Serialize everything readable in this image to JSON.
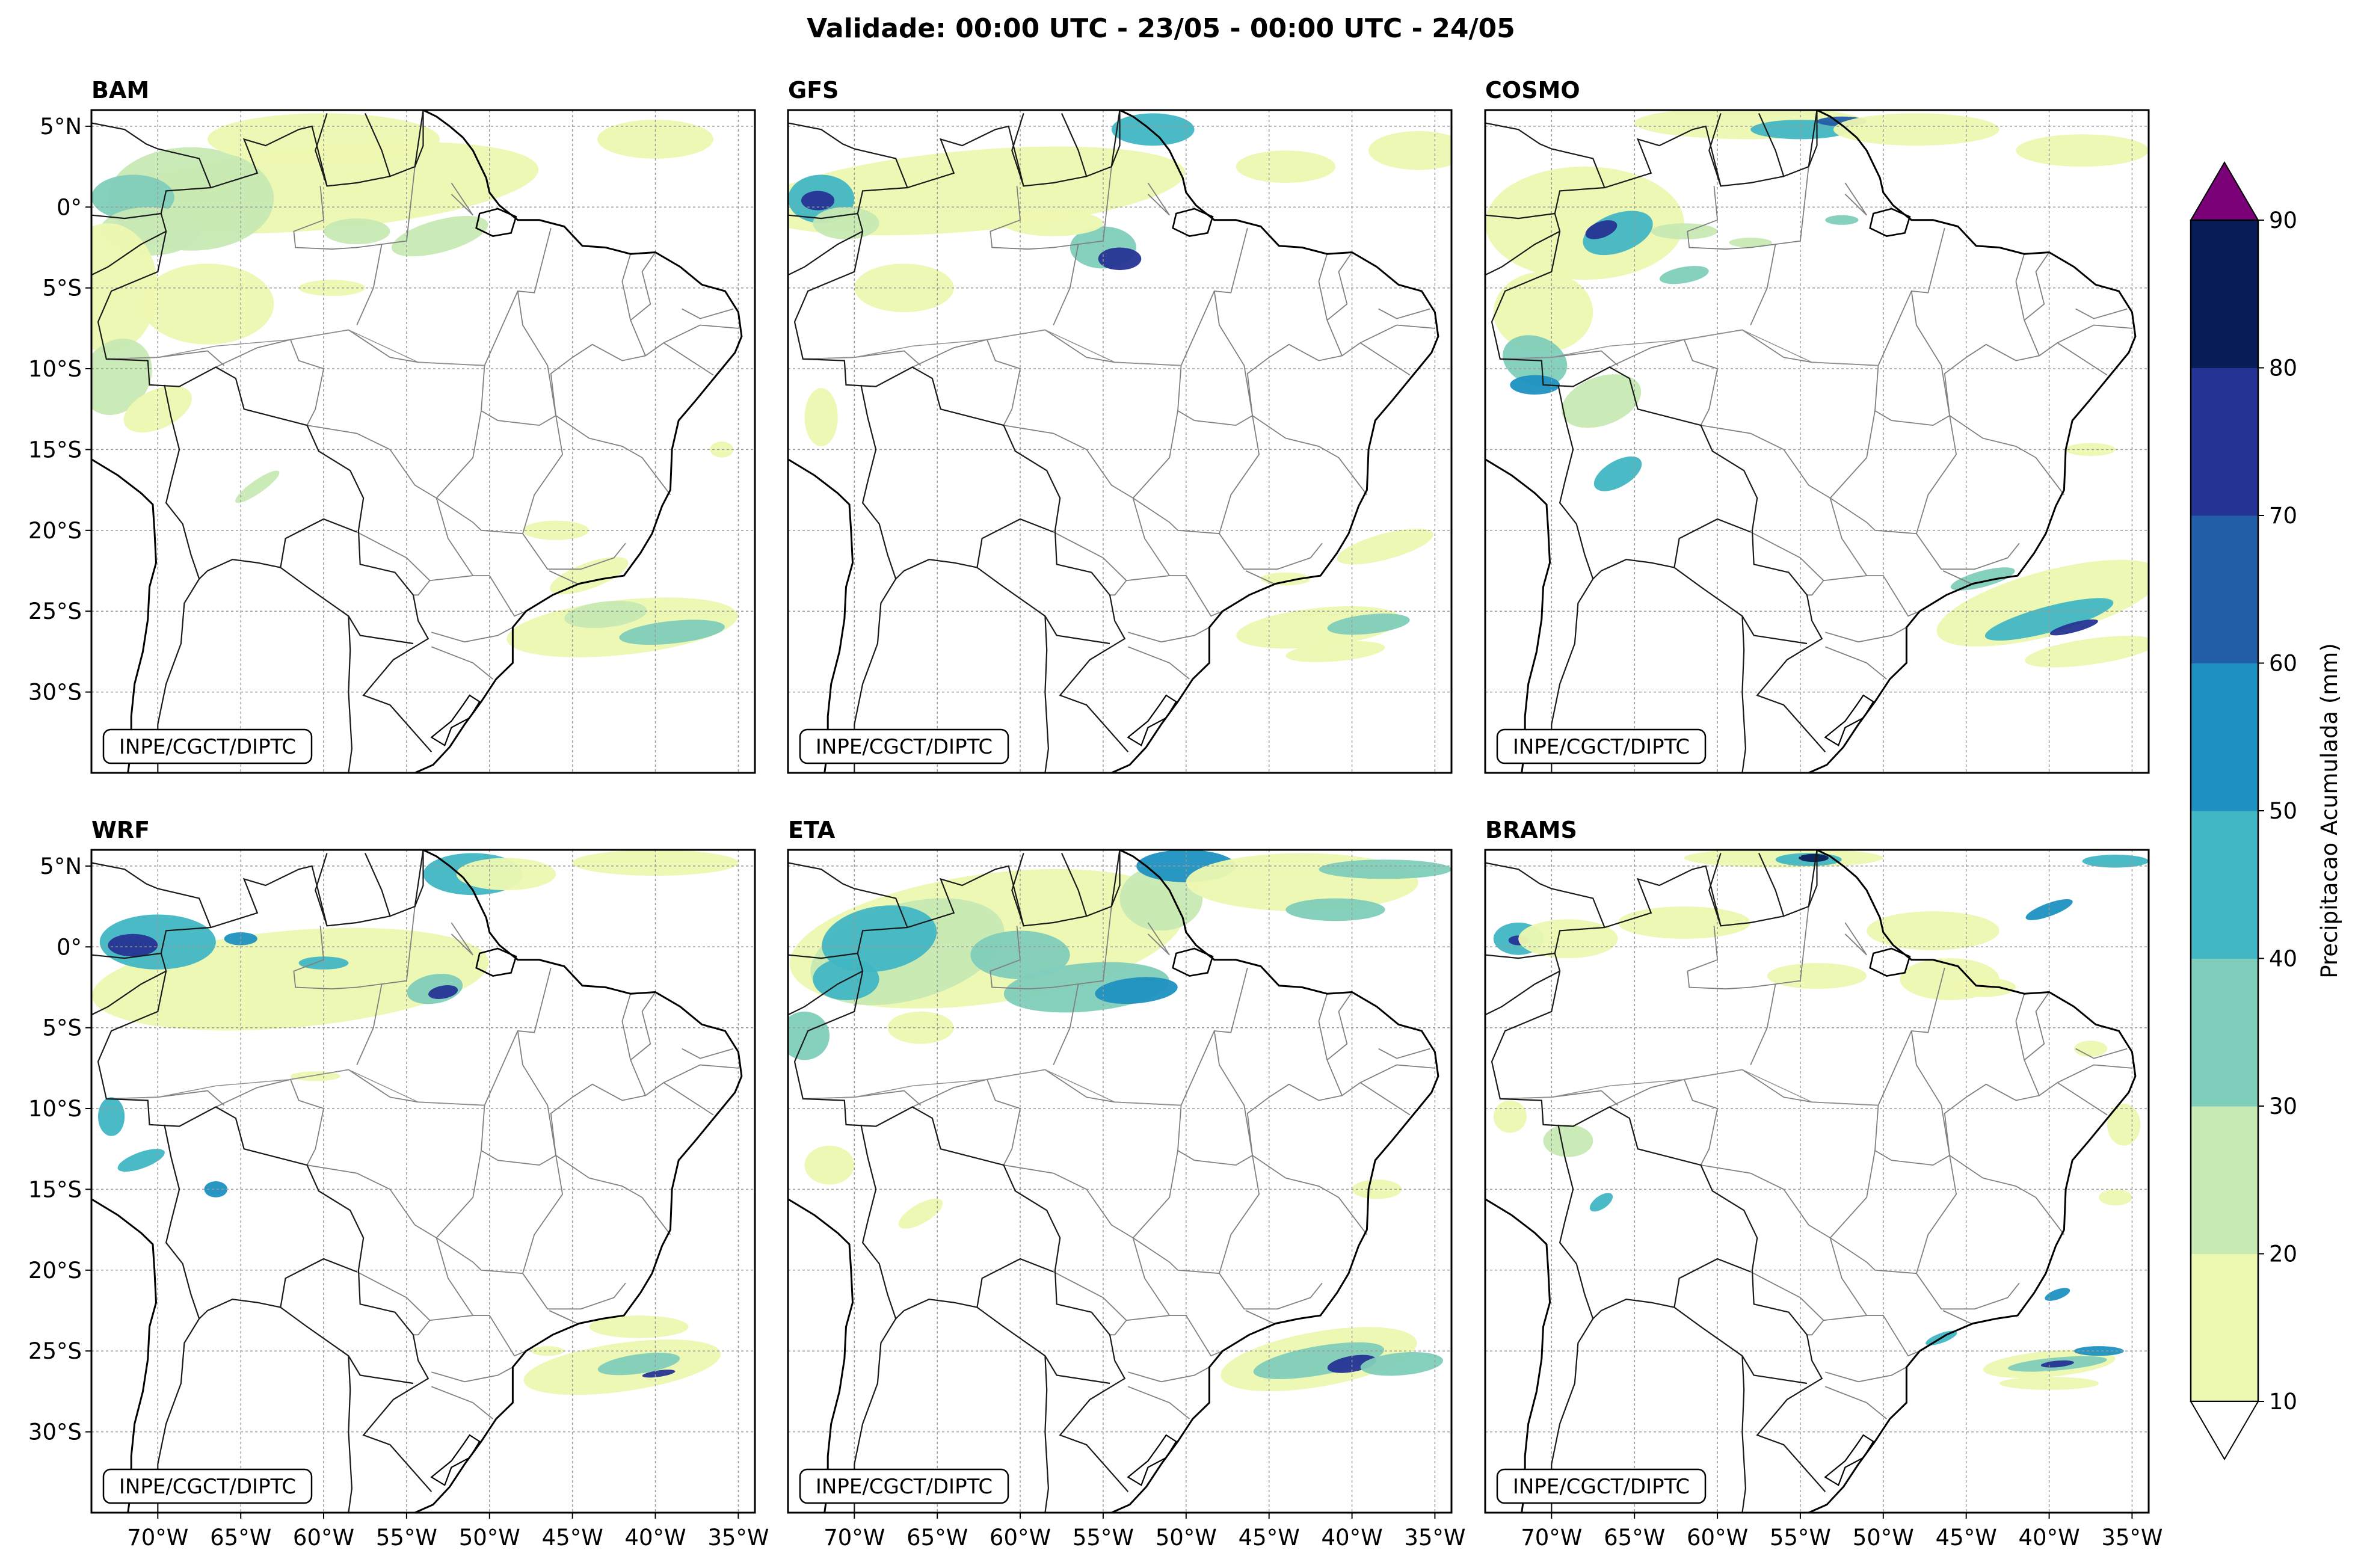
{
  "title": "Validade: 00:00 UTC - 23/05 - 00:00 UTC - 24/05",
  "watermark": "INPE/CGCT/DIPTC",
  "panels": [
    {
      "id": "bam",
      "label": "BAM"
    },
    {
      "id": "gfs",
      "label": "GFS"
    },
    {
      "id": "cosmo",
      "label": "COSMO"
    },
    {
      "id": "wrf",
      "label": "WRF"
    },
    {
      "id": "eta",
      "label": "ETA"
    },
    {
      "id": "brams",
      "label": "BRAMS"
    }
  ],
  "map_extent": {
    "lon": [
      -74,
      -34
    ],
    "lat": [
      -35,
      6
    ]
  },
  "lat_ticks": [
    {
      "value": 5,
      "label": "5°N"
    },
    {
      "value": 0,
      "label": "0°"
    },
    {
      "value": -5,
      "label": "5°S"
    },
    {
      "value": -10,
      "label": "10°S"
    },
    {
      "value": -15,
      "label": "15°S"
    },
    {
      "value": -20,
      "label": "20°S"
    },
    {
      "value": -25,
      "label": "25°S"
    },
    {
      "value": -30,
      "label": "30°S"
    }
  ],
  "lon_ticks": [
    {
      "value": -70,
      "label": "70°W"
    },
    {
      "value": -65,
      "label": "65°W"
    },
    {
      "value": -60,
      "label": "60°W"
    },
    {
      "value": -55,
      "label": "55°W"
    },
    {
      "value": -50,
      "label": "50°W"
    },
    {
      "value": -45,
      "label": "45°W"
    },
    {
      "value": -40,
      "label": "40°W"
    },
    {
      "value": -35,
      "label": "35°W"
    }
  ],
  "colorbar": {
    "label": "Precipitacao Acumulada (mm)",
    "ticks": [
      "10",
      "20",
      "30",
      "40",
      "50",
      "60",
      "70",
      "80",
      "90"
    ],
    "colors": [
      "#edf8b1",
      "#c7e9b4",
      "#7fcdbb",
      "#41b6c4",
      "#1d91c0",
      "#225ea8",
      "#253494",
      "#081d58"
    ],
    "over_color": "#7a0177",
    "under_color": "#ffffff"
  }
}
